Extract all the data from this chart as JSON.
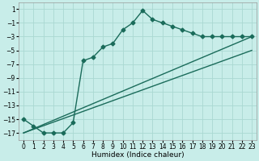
{
  "xlabel": "Humidex (Indice chaleur)",
  "background_color": "#c8ede9",
  "grid_color": "#aad8d2",
  "line_color": "#1a6b5a",
  "xlim": [
    -0.5,
    23.5
  ],
  "ylim": [
    -18,
    2
  ],
  "xticks": [
    0,
    1,
    2,
    3,
    4,
    5,
    6,
    7,
    8,
    9,
    10,
    11,
    12,
    13,
    14,
    15,
    16,
    17,
    18,
    19,
    20,
    21,
    22,
    23
  ],
  "yticks": [
    1,
    -1,
    -3,
    -5,
    -7,
    -9,
    -11,
    -13,
    -15,
    -17
  ],
  "curve1_x": [
    0,
    1,
    2,
    3,
    4,
    5,
    6,
    7,
    8,
    9,
    10,
    11,
    12,
    13,
    14,
    15,
    16,
    17,
    18,
    19,
    20,
    21,
    22,
    23
  ],
  "curve1_y": [
    -15,
    -16,
    -17,
    -17,
    -17,
    -15.5,
    -6.5,
    -6,
    -4.5,
    -4,
    -2,
    -1,
    0.8,
    -0.5,
    -1,
    -1.5,
    -2,
    -2.5,
    -3,
    -3,
    -3,
    -3,
    -3,
    -3
  ],
  "line1_x": [
    0,
    23
  ],
  "line1_y": [
    -17,
    -3
  ],
  "line2_x": [
    0,
    23
  ],
  "line2_y": [
    -17,
    -5
  ],
  "marker": "D",
  "marker_size": 2.5,
  "linewidth": 1.0,
  "tick_fontsize": 5.5,
  "label_fontsize": 6.5
}
